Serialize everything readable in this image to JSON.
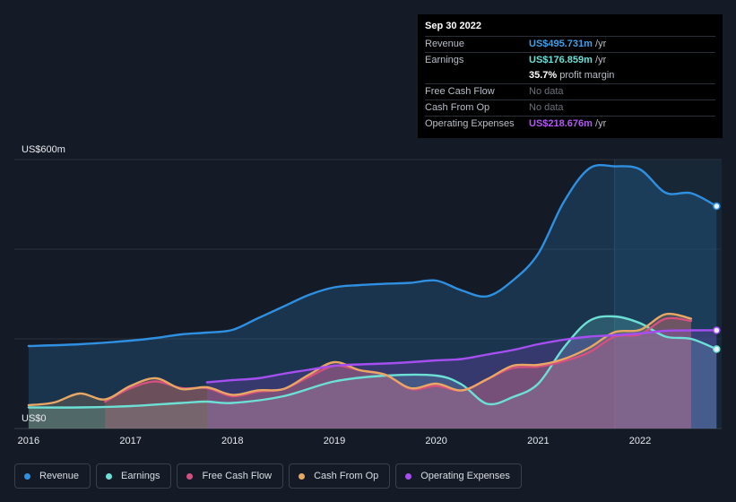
{
  "tooltip": {
    "date": "Sep 30 2022",
    "rows": [
      {
        "label": "Revenue",
        "value": "US$495.731m",
        "suffix": " /yr",
        "color": "#3fa0ea"
      },
      {
        "label": "Earnings",
        "value": "US$176.859m",
        "suffix": " /yr",
        "color": "#6de0d6"
      },
      {
        "label": "",
        "value": "35.7%",
        "suffix": " profit margin",
        "color": "#ffffff"
      },
      {
        "label": "Free Cash Flow",
        "value": "No data",
        "suffix": "",
        "color": "#6b717b"
      },
      {
        "label": "Cash From Op",
        "value": "No data",
        "suffix": "",
        "color": "#6b717b"
      },
      {
        "label": "Operating Expenses",
        "value": "US$218.676m",
        "suffix": " /yr",
        "color": "#b05af0"
      }
    ]
  },
  "legend": [
    {
      "label": "Revenue",
      "color": "#2f8fe0"
    },
    {
      "label": "Earnings",
      "color": "#6de0d6"
    },
    {
      "label": "Free Cash Flow",
      "color": "#d4507e"
    },
    {
      "label": "Cash From Op",
      "color": "#e8a765"
    },
    {
      "label": "Operating Expenses",
      "color": "#a54ff0"
    }
  ],
  "chart_data": {
    "type": "line",
    "title": "",
    "y_unit": "US$m",
    "ylabels": {
      "top": "US$600m",
      "bottom": "US$0"
    },
    "ylim": [
      0,
      600
    ],
    "xlim": [
      2015.86,
      2022.8
    ],
    "x_ticks": [
      "2016",
      "2017",
      "2018",
      "2019",
      "2020",
      "2021",
      "2022"
    ],
    "highlight_from": 2021.75,
    "series": [
      {
        "name": "Revenue",
        "color": "#2f8fe0",
        "x": [
          2016.0,
          2016.5,
          2017.0,
          2017.25,
          2017.5,
          2017.75,
          2018.0,
          2018.25,
          2018.5,
          2018.75,
          2019.0,
          2019.25,
          2019.5,
          2019.75,
          2020.0,
          2020.25,
          2020.5,
          2020.75,
          2021.0,
          2021.25,
          2021.5,
          2021.75,
          2022.0,
          2022.25,
          2022.5,
          2022.75
        ],
        "y": [
          184,
          188,
          196,
          202,
          210,
          214,
          220,
          246,
          272,
          298,
          315,
          320,
          323,
          325,
          330,
          308,
          295,
          330,
          390,
          505,
          580,
          585,
          578,
          526,
          525,
          496
        ]
      },
      {
        "name": "Earnings",
        "color": "#6de0d6",
        "x": [
          2016.0,
          2016.5,
          2017.0,
          2017.5,
          2017.75,
          2018.0,
          2018.5,
          2019.0,
          2019.5,
          2020.0,
          2020.25,
          2020.5,
          2020.75,
          2021.0,
          2021.25,
          2021.5,
          2021.75,
          2022.0,
          2022.25,
          2022.5,
          2022.75
        ],
        "y": [
          47,
          47,
          50,
          57,
          60,
          57,
          72,
          105,
          118,
          118,
          98,
          55,
          70,
          100,
          180,
          240,
          250,
          235,
          205,
          200,
          177
        ]
      },
      {
        "name": "Free Cash Flow",
        "color": "#d4507e",
        "x": [
          2016.75,
          2017.0,
          2017.25,
          2017.5,
          2017.75,
          2018.0,
          2018.25,
          2018.5,
          2018.75,
          2019.0,
          2019.25,
          2019.5,
          2019.75,
          2020.0,
          2020.25,
          2020.5,
          2020.75,
          2021.0,
          2021.25,
          2021.5,
          2021.75,
          2022.0,
          2022.25,
          2022.5
        ],
        "y": [
          60,
          90,
          105,
          90,
          90,
          72,
          82,
          88,
          115,
          140,
          130,
          120,
          88,
          95,
          85,
          110,
          135,
          138,
          150,
          170,
          205,
          210,
          245,
          240
        ]
      },
      {
        "name": "Cash From Op",
        "color": "#e8a765",
        "x": [
          2016.0,
          2016.25,
          2016.5,
          2016.75,
          2017.0,
          2017.25,
          2017.5,
          2017.75,
          2018.0,
          2018.25,
          2018.5,
          2018.75,
          2019.0,
          2019.25,
          2019.5,
          2019.75,
          2020.0,
          2020.25,
          2020.5,
          2020.75,
          2021.0,
          2021.25,
          2021.5,
          2021.75,
          2022.0,
          2022.25,
          2022.5
        ],
        "y": [
          52,
          58,
          78,
          65,
          95,
          112,
          88,
          92,
          75,
          85,
          88,
          120,
          148,
          130,
          120,
          90,
          100,
          85,
          110,
          140,
          142,
          155,
          180,
          215,
          220,
          255,
          245
        ]
      },
      {
        "name": "Operating Expenses",
        "color": "#a54ff0",
        "x": [
          2017.75,
          2018.0,
          2018.25,
          2018.5,
          2018.75,
          2019.0,
          2019.25,
          2019.5,
          2019.75,
          2020.0,
          2020.25,
          2020.5,
          2020.75,
          2021.0,
          2021.25,
          2021.5,
          2021.75,
          2022.0,
          2022.25,
          2022.5,
          2022.75
        ],
        "y": [
          103,
          108,
          112,
          122,
          131,
          140,
          143,
          145,
          148,
          152,
          155,
          165,
          175,
          188,
          198,
          205,
          208,
          212,
          218,
          219,
          219
        ]
      }
    ]
  }
}
